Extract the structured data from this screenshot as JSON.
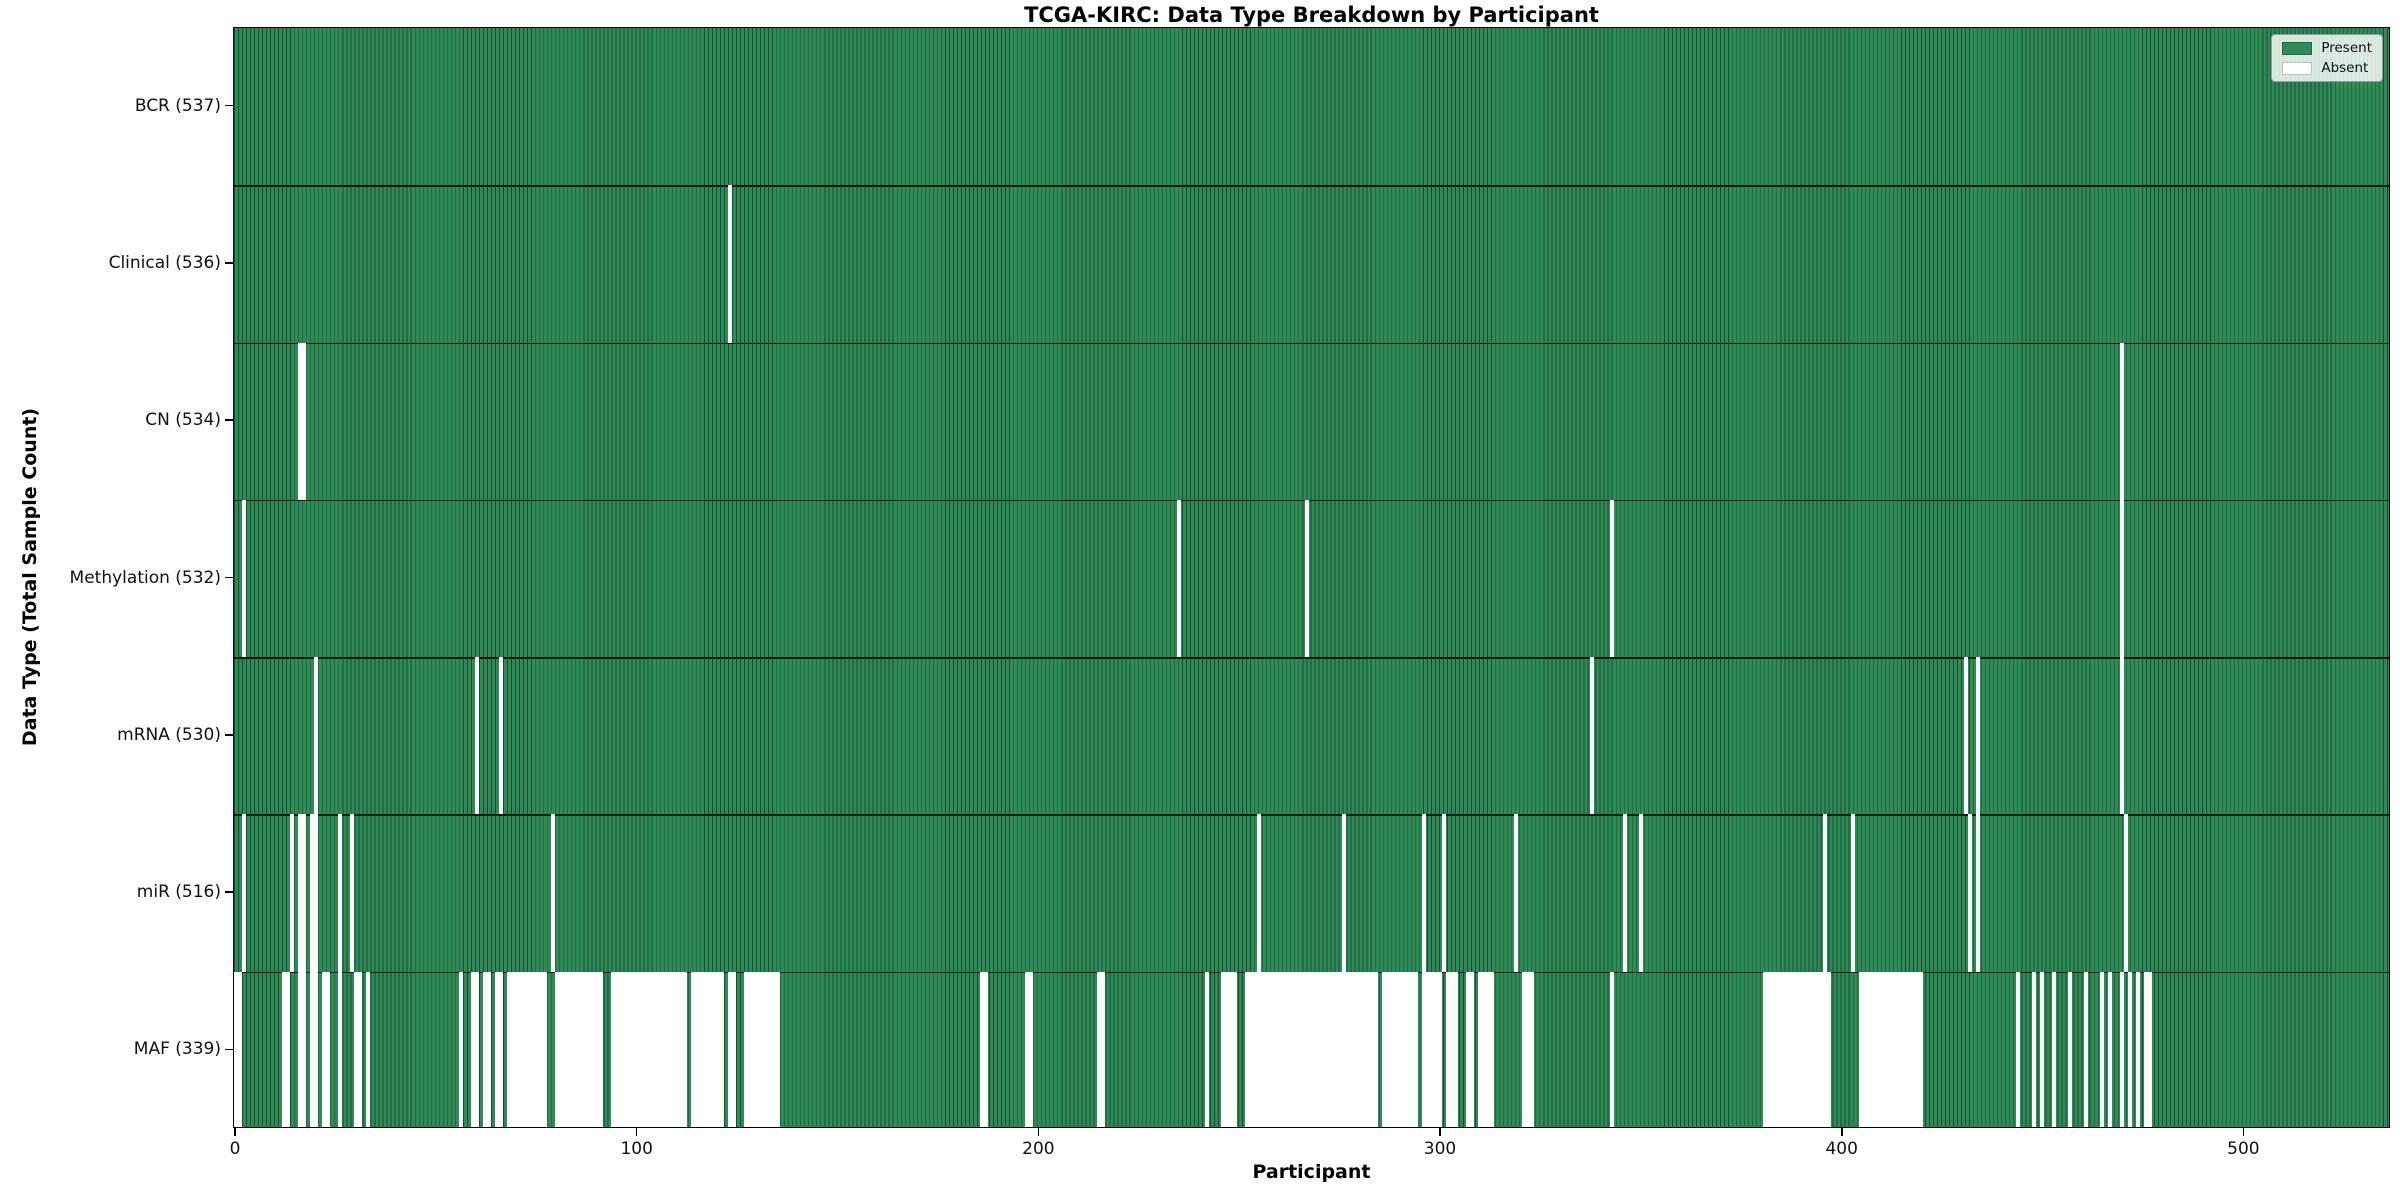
{
  "chart_data": {
    "type": "heatmap",
    "title": "TCGA-KIRC: Data Type Breakdown by Participant",
    "xlabel": "Participant",
    "ylabel": "Data Type (Total Sample Count)",
    "n_participants": 537,
    "xlim": [
      -0.5,
      536.5
    ],
    "x_ticks": [
      0,
      100,
      200,
      300,
      400,
      500
    ],
    "grid": false,
    "legend_position": "upper right",
    "colors": {
      "present": "#2e8b57",
      "absent": "#ffffff",
      "bar_edge": "#1a4c30",
      "separator": "#000000"
    },
    "legend": [
      {
        "label": "Present",
        "color": "#2e8b57"
      },
      {
        "label": "Absent",
        "color": "#ffffff"
      }
    ],
    "rows": [
      {
        "name": "BCR",
        "label": "BCR (537)",
        "present_count": 537,
        "absent_count": 0,
        "absent_ranges": []
      },
      {
        "name": "Clinical",
        "label": "Clinical (536)",
        "present_count": 536,
        "absent_count": 1,
        "absent_ranges": [
          [
            123,
            123
          ]
        ]
      },
      {
        "name": "CN",
        "label": "CN (534)",
        "present_count": 534,
        "absent_count": 3,
        "absent_ranges": [
          [
            16,
            17
          ],
          [
            470,
            470
          ]
        ]
      },
      {
        "name": "Methylation",
        "label": "Methylation (532)",
        "present_count": 532,
        "absent_count": 5,
        "absent_ranges": [
          [
            2,
            2
          ],
          [
            235,
            235
          ],
          [
            267,
            267
          ],
          [
            343,
            343
          ],
          [
            470,
            470
          ]
        ]
      },
      {
        "name": "mRNA",
        "label": "mRNA (530)",
        "present_count": 530,
        "absent_count": 7,
        "absent_ranges": [
          [
            20,
            20
          ],
          [
            60,
            60
          ],
          [
            66,
            66
          ],
          [
            338,
            338
          ],
          [
            431,
            431
          ],
          [
            434,
            434
          ],
          [
            470,
            470
          ]
        ]
      },
      {
        "name": "miR",
        "label": "miR (516)",
        "present_count": 516,
        "absent_count": 21,
        "absent_ranges": [
          [
            2,
            2
          ],
          [
            14,
            14
          ],
          [
            16,
            17
          ],
          [
            19,
            20
          ],
          [
            26,
            26
          ],
          [
            29,
            29
          ],
          [
            79,
            79
          ],
          [
            255,
            255
          ],
          [
            276,
            276
          ],
          [
            296,
            296
          ],
          [
            301,
            301
          ],
          [
            319,
            319
          ],
          [
            346,
            346
          ],
          [
            350,
            350
          ],
          [
            396,
            396
          ],
          [
            403,
            403
          ],
          [
            432,
            432
          ],
          [
            434,
            434
          ],
          [
            471,
            471
          ]
        ]
      },
      {
        "name": "MAF",
        "label": "MAF (339)",
        "present_count": 339,
        "absent_count": 198,
        "absent_ranges": [
          [
            0,
            1
          ],
          [
            12,
            13
          ],
          [
            16,
            17
          ],
          [
            19,
            20
          ],
          [
            22,
            23
          ],
          [
            26,
            26
          ],
          [
            30,
            31
          ],
          [
            33,
            33
          ],
          [
            56,
            56
          ],
          [
            59,
            60
          ],
          [
            62,
            63
          ],
          [
            65,
            66
          ],
          [
            68,
            77
          ],
          [
            80,
            91
          ],
          [
            94,
            112
          ],
          [
            114,
            121
          ],
          [
            123,
            124
          ],
          [
            127,
            135
          ],
          [
            186,
            187
          ],
          [
            197,
            198
          ],
          [
            215,
            216
          ],
          [
            242,
            242
          ],
          [
            246,
            249
          ],
          [
            252,
            284
          ],
          [
            286,
            294
          ],
          [
            296,
            300
          ],
          [
            302,
            304
          ],
          [
            307,
            308
          ],
          [
            310,
            313
          ],
          [
            321,
            323
          ],
          [
            343,
            343
          ],
          [
            381,
            397
          ],
          [
            405,
            420
          ],
          [
            444,
            444
          ],
          [
            448,
            448
          ],
          [
            450,
            450
          ],
          [
            453,
            453
          ],
          [
            457,
            457
          ],
          [
            461,
            461
          ],
          [
            465,
            465
          ],
          [
            467,
            467
          ],
          [
            470,
            470
          ],
          [
            472,
            472
          ],
          [
            474,
            474
          ],
          [
            476,
            477
          ]
        ]
      }
    ]
  }
}
